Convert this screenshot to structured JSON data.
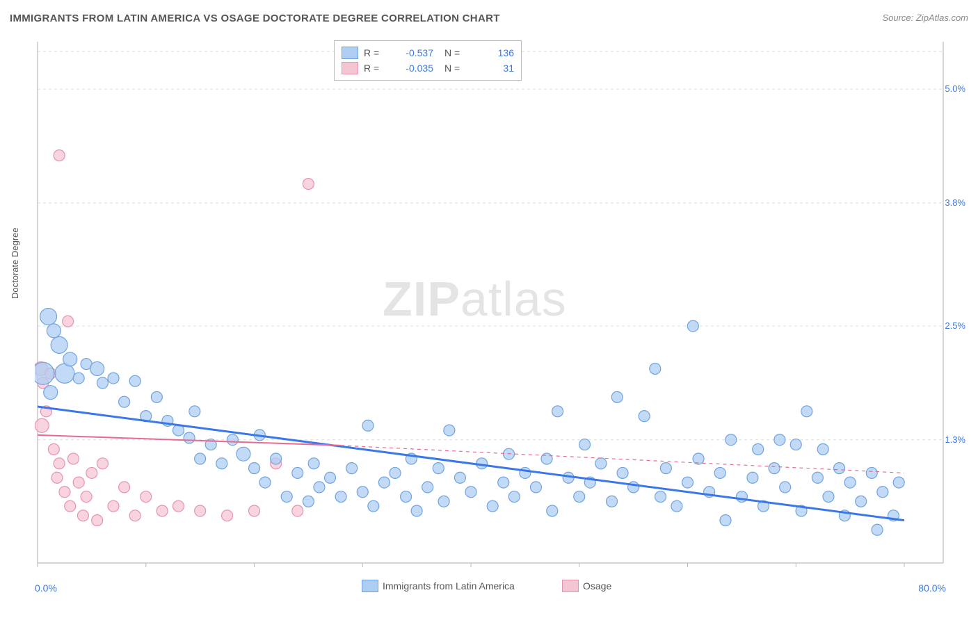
{
  "title": "IMMIGRANTS FROM LATIN AMERICA VS OSAGE DOCTORATE DEGREE CORRELATION CHART",
  "source": "Source: ZipAtlas.com",
  "y_axis_label": "Doctorate Degree",
  "watermark": "ZIPatlas",
  "chart": {
    "type": "scatter",
    "xlim": [
      0,
      80
    ],
    "ylim": [
      0,
      5.5
    ],
    "x_axis_start_label": "0.0%",
    "x_axis_end_label": "80.0%",
    "x_ticks": [
      0,
      10,
      20,
      30,
      40,
      50,
      60,
      70,
      80
    ],
    "y_ticks": [
      {
        "val": 1.3,
        "label": "1.3%"
      },
      {
        "val": 2.5,
        "label": "2.5%"
      },
      {
        "val": 3.8,
        "label": "3.8%"
      },
      {
        "val": 5.0,
        "label": "5.0%"
      }
    ],
    "background_color": "#ffffff",
    "grid_color": "#dddddd",
    "axis_color": "#bbbbbb",
    "series": [
      {
        "name": "Immigrants from Latin America",
        "fill": "#aecdf2",
        "stroke": "#6fa3e0",
        "line_color": "#3b78e7",
        "line_width": 3,
        "R": "-0.537",
        "N": "136",
        "trend": {
          "x1": 0,
          "y1": 1.65,
          "x2": 80,
          "y2": 0.45
        },
        "points": [
          {
            "x": 1,
            "y": 2.6,
            "r": 12
          },
          {
            "x": 1.5,
            "y": 2.45,
            "r": 10
          },
          {
            "x": 2,
            "y": 2.3,
            "r": 12
          },
          {
            "x": 2.5,
            "y": 2.0,
            "r": 14
          },
          {
            "x": 3,
            "y": 2.15,
            "r": 10
          },
          {
            "x": 3.8,
            "y": 1.95,
            "r": 8
          },
          {
            "x": 0.5,
            "y": 2.0,
            "r": 16
          },
          {
            "x": 1.2,
            "y": 1.8,
            "r": 10
          },
          {
            "x": 4.5,
            "y": 2.1,
            "r": 8
          },
          {
            "x": 5.5,
            "y": 2.05,
            "r": 10
          },
          {
            "x": 6,
            "y": 1.9,
            "r": 8
          },
          {
            "x": 7,
            "y": 1.95,
            "r": 8
          },
          {
            "x": 8,
            "y": 1.7,
            "r": 8
          },
          {
            "x": 9,
            "y": 1.92,
            "r": 8
          },
          {
            "x": 10,
            "y": 1.55,
            "r": 8
          },
          {
            "x": 11,
            "y": 1.75,
            "r": 8
          },
          {
            "x": 12,
            "y": 1.5,
            "r": 8
          },
          {
            "x": 13,
            "y": 1.4,
            "r": 8
          },
          {
            "x": 14,
            "y": 1.32,
            "r": 8
          },
          {
            "x": 14.5,
            "y": 1.6,
            "r": 8
          },
          {
            "x": 15,
            "y": 1.1,
            "r": 8
          },
          {
            "x": 16,
            "y": 1.25,
            "r": 8
          },
          {
            "x": 17,
            "y": 1.05,
            "r": 8
          },
          {
            "x": 18,
            "y": 1.3,
            "r": 8
          },
          {
            "x": 19,
            "y": 1.15,
            "r": 10
          },
          {
            "x": 20,
            "y": 1.0,
            "r": 8
          },
          {
            "x": 20.5,
            "y": 1.35,
            "r": 8
          },
          {
            "x": 21,
            "y": 0.85,
            "r": 8
          },
          {
            "x": 22,
            "y": 1.1,
            "r": 8
          },
          {
            "x": 23,
            "y": 0.7,
            "r": 8
          },
          {
            "x": 24,
            "y": 0.95,
            "r": 8
          },
          {
            "x": 25,
            "y": 0.65,
            "r": 8
          },
          {
            "x": 25.5,
            "y": 1.05,
            "r": 8
          },
          {
            "x": 26,
            "y": 0.8,
            "r": 8
          },
          {
            "x": 27,
            "y": 0.9,
            "r": 8
          },
          {
            "x": 28,
            "y": 0.7,
            "r": 8
          },
          {
            "x": 29,
            "y": 1.0,
            "r": 8
          },
          {
            "x": 30,
            "y": 0.75,
            "r": 8
          },
          {
            "x": 30.5,
            "y": 1.45,
            "r": 8
          },
          {
            "x": 31,
            "y": 0.6,
            "r": 8
          },
          {
            "x": 32,
            "y": 0.85,
            "r": 8
          },
          {
            "x": 33,
            "y": 0.95,
            "r": 8
          },
          {
            "x": 34,
            "y": 0.7,
            "r": 8
          },
          {
            "x": 34.5,
            "y": 1.1,
            "r": 8
          },
          {
            "x": 35,
            "y": 0.55,
            "r": 8
          },
          {
            "x": 36,
            "y": 0.8,
            "r": 8
          },
          {
            "x": 37,
            "y": 1.0,
            "r": 8
          },
          {
            "x": 37.5,
            "y": 0.65,
            "r": 8
          },
          {
            "x": 38,
            "y": 1.4,
            "r": 8
          },
          {
            "x": 39,
            "y": 0.9,
            "r": 8
          },
          {
            "x": 40,
            "y": 0.75,
            "r": 8
          },
          {
            "x": 41,
            "y": 1.05,
            "r": 8
          },
          {
            "x": 42,
            "y": 0.6,
            "r": 8
          },
          {
            "x": 43,
            "y": 0.85,
            "r": 8
          },
          {
            "x": 43.5,
            "y": 1.15,
            "r": 8
          },
          {
            "x": 44,
            "y": 0.7,
            "r": 8
          },
          {
            "x": 45,
            "y": 0.95,
            "r": 8
          },
          {
            "x": 46,
            "y": 0.8,
            "r": 8
          },
          {
            "x": 47,
            "y": 1.1,
            "r": 8
          },
          {
            "x": 47.5,
            "y": 0.55,
            "r": 8
          },
          {
            "x": 48,
            "y": 1.6,
            "r": 8
          },
          {
            "x": 49,
            "y": 0.9,
            "r": 8
          },
          {
            "x": 50,
            "y": 0.7,
            "r": 8
          },
          {
            "x": 50.5,
            "y": 1.25,
            "r": 8
          },
          {
            "x": 51,
            "y": 0.85,
            "r": 8
          },
          {
            "x": 52,
            "y": 1.05,
            "r": 8
          },
          {
            "x": 53,
            "y": 0.65,
            "r": 8
          },
          {
            "x": 53.5,
            "y": 1.75,
            "r": 8
          },
          {
            "x": 54,
            "y": 0.95,
            "r": 8
          },
          {
            "x": 55,
            "y": 0.8,
            "r": 8
          },
          {
            "x": 56,
            "y": 1.55,
            "r": 8
          },
          {
            "x": 57,
            "y": 2.05,
            "r": 8
          },
          {
            "x": 57.5,
            "y": 0.7,
            "r": 8
          },
          {
            "x": 58,
            "y": 1.0,
            "r": 8
          },
          {
            "x": 59,
            "y": 0.6,
            "r": 8
          },
          {
            "x": 60,
            "y": 0.85,
            "r": 8
          },
          {
            "x": 60.5,
            "y": 2.5,
            "r": 8
          },
          {
            "x": 61,
            "y": 1.1,
            "r": 8
          },
          {
            "x": 62,
            "y": 0.75,
            "r": 8
          },
          {
            "x": 63,
            "y": 0.95,
            "r": 8
          },
          {
            "x": 63.5,
            "y": 0.45,
            "r": 8
          },
          {
            "x": 64,
            "y": 1.3,
            "r": 8
          },
          {
            "x": 65,
            "y": 0.7,
            "r": 8
          },
          {
            "x": 66,
            "y": 0.9,
            "r": 8
          },
          {
            "x": 66.5,
            "y": 1.2,
            "r": 8
          },
          {
            "x": 67,
            "y": 0.6,
            "r": 8
          },
          {
            "x": 68,
            "y": 1.0,
            "r": 8
          },
          {
            "x": 68.5,
            "y": 1.3,
            "r": 8
          },
          {
            "x": 69,
            "y": 0.8,
            "r": 8
          },
          {
            "x": 70,
            "y": 1.25,
            "r": 8
          },
          {
            "x": 70.5,
            "y": 0.55,
            "r": 8
          },
          {
            "x": 71,
            "y": 1.6,
            "r": 8
          },
          {
            "x": 72,
            "y": 0.9,
            "r": 8
          },
          {
            "x": 72.5,
            "y": 1.2,
            "r": 8
          },
          {
            "x": 73,
            "y": 0.7,
            "r": 8
          },
          {
            "x": 74,
            "y": 1.0,
            "r": 8
          },
          {
            "x": 74.5,
            "y": 0.5,
            "r": 8
          },
          {
            "x": 75,
            "y": 0.85,
            "r": 8
          },
          {
            "x": 76,
            "y": 0.65,
            "r": 8
          },
          {
            "x": 77,
            "y": 0.95,
            "r": 8
          },
          {
            "x": 77.5,
            "y": 0.35,
            "r": 8
          },
          {
            "x": 78,
            "y": 0.75,
            "r": 8
          },
          {
            "x": 79,
            "y": 0.5,
            "r": 8
          },
          {
            "x": 79.5,
            "y": 0.85,
            "r": 8
          }
        ]
      },
      {
        "name": "Osage",
        "fill": "#f4c6d4",
        "stroke": "#e793ad",
        "line_color": "#e86a8f",
        "line_width": 2,
        "R": "-0.035",
        "N": "31",
        "trend_solid": {
          "x1": 0,
          "y1": 1.35,
          "x2": 28,
          "y2": 1.24
        },
        "trend_dash": {
          "x1": 28,
          "y1": 1.24,
          "x2": 80,
          "y2": 0.95
        },
        "points": [
          {
            "x": 0.3,
            "y": 2.05,
            "r": 10
          },
          {
            "x": 0.5,
            "y": 1.9,
            "r": 8
          },
          {
            "x": 0.8,
            "y": 1.6,
            "r": 8
          },
          {
            "x": 0.4,
            "y": 1.45,
            "r": 10
          },
          {
            "x": 1.2,
            "y": 2.0,
            "r": 8
          },
          {
            "x": 1.5,
            "y": 1.2,
            "r": 8
          },
          {
            "x": 1.8,
            "y": 0.9,
            "r": 8
          },
          {
            "x": 2.0,
            "y": 1.05,
            "r": 8
          },
          {
            "x": 2.5,
            "y": 0.75,
            "r": 8
          },
          {
            "x": 2.8,
            "y": 2.55,
            "r": 8
          },
          {
            "x": 3.0,
            "y": 0.6,
            "r": 8
          },
          {
            "x": 3.3,
            "y": 1.1,
            "r": 8
          },
          {
            "x": 3.8,
            "y": 0.85,
            "r": 8
          },
          {
            "x": 4.2,
            "y": 0.5,
            "r": 8
          },
          {
            "x": 4.5,
            "y": 0.7,
            "r": 8
          },
          {
            "x": 5.0,
            "y": 0.95,
            "r": 8
          },
          {
            "x": 5.5,
            "y": 0.45,
            "r": 8
          },
          {
            "x": 6.0,
            "y": 1.05,
            "r": 8
          },
          {
            "x": 7.0,
            "y": 0.6,
            "r": 8
          },
          {
            "x": 8.0,
            "y": 0.8,
            "r": 8
          },
          {
            "x": 9.0,
            "y": 0.5,
            "r": 8
          },
          {
            "x": 10.0,
            "y": 0.7,
            "r": 8
          },
          {
            "x": 11.5,
            "y": 0.55,
            "r": 8
          },
          {
            "x": 13.0,
            "y": 0.6,
            "r": 8
          },
          {
            "x": 15.0,
            "y": 0.55,
            "r": 8
          },
          {
            "x": 17.5,
            "y": 0.5,
            "r": 8
          },
          {
            "x": 20.0,
            "y": 0.55,
            "r": 8
          },
          {
            "x": 22.0,
            "y": 1.05,
            "r": 8
          },
          {
            "x": 24.0,
            "y": 0.55,
            "r": 8
          },
          {
            "x": 2.0,
            "y": 4.3,
            "r": 8
          },
          {
            "x": 25.0,
            "y": 4.0,
            "r": 8
          }
        ]
      }
    ],
    "bottom_legend": [
      {
        "swatch_fill": "#aecdf2",
        "swatch_stroke": "#6fa3e0",
        "label": "Immigrants from Latin America"
      },
      {
        "swatch_fill": "#f4c6d4",
        "swatch_stroke": "#e793ad",
        "label": "Osage"
      }
    ]
  }
}
